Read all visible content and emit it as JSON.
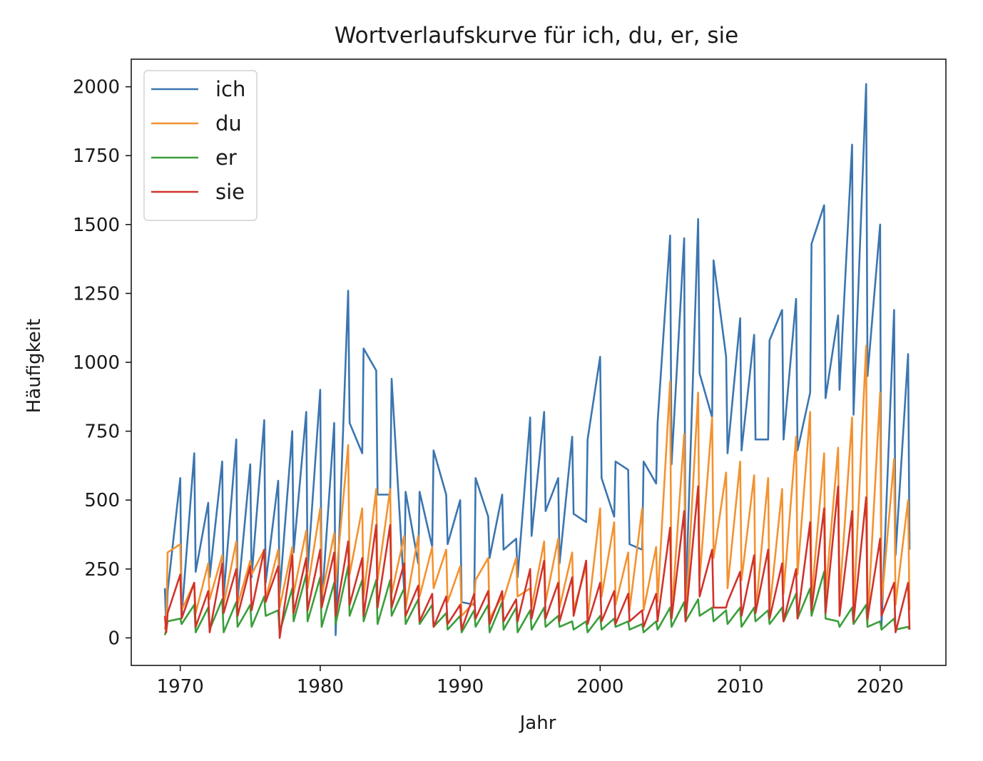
{
  "chart_data": {
    "type": "line",
    "title": "Wortverlaufskurve für ich, du, er, sie",
    "xlabel": "Jahr",
    "ylabel": "Häufigkeit",
    "xlim": [
      1966.5,
      2024.7
    ],
    "ylim": [
      -100,
      2100
    ],
    "xticks": [
      1970,
      1980,
      1990,
      2000,
      2010,
      2020
    ],
    "yticks": [
      0,
      250,
      500,
      750,
      1000,
      1250,
      1500,
      1750,
      2000
    ],
    "grid": false,
    "legend_position": "top-left",
    "x": [
      1968.9,
      1969.0,
      1969.1,
      1970.0,
      1970.1,
      1971.0,
      1971.1,
      1972.0,
      1972.1,
      1973.0,
      1973.1,
      1974.0,
      1974.1,
      1975.0,
      1975.1,
      1976.0,
      1976.1,
      1977.0,
      1977.1,
      1978.0,
      1978.1,
      1979.0,
      1979.1,
      1980.0,
      1980.1,
      1981.0,
      1981.1,
      1982.0,
      1982.1,
      1983.0,
      1983.1,
      1984.0,
      1984.1,
      1985.0,
      1985.1,
      1986.0,
      1986.1,
      1987.0,
      1987.1,
      1988.0,
      1988.1,
      1989.0,
      1989.1,
      1990.0,
      1990.1,
      1991.0,
      1991.1,
      1992.0,
      1992.1,
      1993.0,
      1993.1,
      1994.0,
      1994.1,
      1995.0,
      1995.1,
      1996.0,
      1996.1,
      1997.0,
      1997.1,
      1998.0,
      1998.1,
      1999.0,
      1999.1,
      2000.0,
      2000.1,
      2001.0,
      2001.1,
      2002.0,
      2002.1,
      2003.0,
      2003.1,
      2004.0,
      2004.1,
      2005.0,
      2005.1,
      2006.0,
      2006.1,
      2007.0,
      2007.1,
      2008.0,
      2008.1,
      2009.0,
      2009.1,
      2010.0,
      2010.1,
      2011.0,
      2011.1,
      2012.0,
      2012.1,
      2013.0,
      2013.1,
      2014.0,
      2014.1,
      2015.0,
      2015.1,
      2016.0,
      2016.1,
      2017.0,
      2017.1,
      2018.0,
      2018.1,
      2019.0,
      2019.1,
      2020.0,
      2020.1,
      2021.0,
      2021.1,
      2022.0,
      2022.1
    ],
    "series": [
      {
        "name": "ich",
        "color": "#3a75b0",
        "values": [
          180,
          40,
          170,
          580,
          80,
          670,
          240,
          490,
          220,
          640,
          150,
          720,
          140,
          630,
          220,
          790,
          200,
          570,
          160,
          750,
          310,
          820,
          240,
          900,
          120,
          780,
          10,
          1260,
          780,
          670,
          1050,
          970,
          520,
          520,
          940,
          170,
          530,
          270,
          530,
          330,
          680,
          520,
          340,
          500,
          130,
          120,
          580,
          440,
          290,
          520,
          320,
          360,
          220,
          800,
          370,
          820,
          460,
          580,
          270,
          730,
          450,
          420,
          720,
          1020,
          580,
          440,
          640,
          610,
          340,
          320,
          640,
          560,
          780,
          1460,
          630,
          1450,
          120,
          1520,
          960,
          800,
          1370,
          1020,
          670,
          1160,
          680,
          1100,
          720,
          720,
          1080,
          1190,
          720,
          1230,
          680,
          890,
          1430,
          1570,
          870,
          1170,
          900,
          1790,
          810,
          2010,
          950,
          1500,
          40,
          1190,
          300,
          1030,
          320
        ]
      },
      {
        "name": "du",
        "color": "#f39230",
        "values": [
          30,
          60,
          310,
          340,
          100,
          200,
          90,
          270,
          140,
          300,
          120,
          350,
          120,
          280,
          230,
          320,
          140,
          320,
          110,
          330,
          160,
          390,
          180,
          470,
          150,
          380,
          200,
          700,
          230,
          470,
          150,
          540,
          210,
          540,
          160,
          370,
          110,
          370,
          150,
          330,
          180,
          320,
          130,
          260,
          80,
          130,
          210,
          290,
          70,
          150,
          140,
          290,
          150,
          180,
          110,
          350,
          130,
          360,
          110,
          310,
          100,
          260,
          70,
          470,
          150,
          420,
          120,
          310,
          100,
          470,
          100,
          330,
          130,
          930,
          80,
          740,
          60,
          890,
          210,
          800,
          290,
          600,
          180,
          640,
          210,
          590,
          90,
          580,
          100,
          540,
          160,
          730,
          230,
          820,
          140,
          670,
          160,
          690,
          140,
          800,
          90,
          1060,
          50,
          890,
          120,
          650,
          120,
          500,
          100
        ]
      },
      {
        "name": "er",
        "color": "#3b9e3b",
        "values": [
          10,
          30,
          60,
          70,
          50,
          120,
          20,
          110,
          30,
          140,
          20,
          130,
          40,
          120,
          40,
          150,
          80,
          100,
          20,
          180,
          60,
          230,
          60,
          220,
          40,
          200,
          50,
          260,
          80,
          210,
          60,
          210,
          50,
          210,
          80,
          180,
          50,
          140,
          50,
          120,
          40,
          90,
          30,
          80,
          20,
          100,
          40,
          120,
          20,
          130,
          30,
          110,
          20,
          100,
          30,
          110,
          40,
          80,
          40,
          60,
          30,
          60,
          20,
          80,
          30,
          70,
          40,
          60,
          30,
          50,
          20,
          60,
          30,
          110,
          40,
          130,
          60,
          140,
          80,
          110,
          60,
          100,
          50,
          110,
          40,
          110,
          60,
          100,
          50,
          110,
          60,
          160,
          70,
          180,
          80,
          240,
          70,
          60,
          40,
          110,
          50,
          120,
          40,
          60,
          30,
          70,
          30,
          40,
          30
        ]
      },
      {
        "name": "sie",
        "color": "#d0332c",
        "values": [
          80,
          20,
          90,
          230,
          70,
          200,
          40,
          170,
          20,
          270,
          90,
          250,
          80,
          260,
          100,
          320,
          130,
          260,
          0,
          300,
          90,
          290,
          100,
          320,
          110,
          310,
          80,
          350,
          120,
          290,
          80,
          410,
          110,
          410,
          110,
          270,
          80,
          190,
          60,
          160,
          40,
          150,
          50,
          120,
          30,
          160,
          70,
          170,
          50,
          170,
          60,
          140,
          60,
          250,
          70,
          280,
          70,
          200,
          60,
          220,
          80,
          280,
          50,
          200,
          60,
          170,
          50,
          160,
          60,
          100,
          40,
          160,
          60,
          400,
          70,
          460,
          60,
          550,
          150,
          320,
          110,
          110,
          130,
          240,
          80,
          300,
          90,
          320,
          70,
          270,
          60,
          250,
          70,
          420,
          100,
          470,
          90,
          550,
          80,
          460,
          60,
          510,
          70,
          360,
          80,
          200,
          20,
          200,
          30
        ]
      }
    ]
  }
}
